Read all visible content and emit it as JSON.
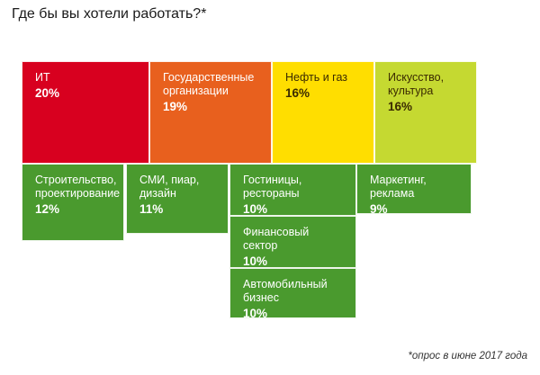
{
  "title": "Где бы вы хотели работать?*",
  "footnote": "*опрос в июне 2017 года",
  "chart_data": {
    "type": "treemap",
    "categories": [
      "ИТ",
      "Государственные организации",
      "Нефть и газ",
      "Искусство, культура",
      "Строительство, проектирование",
      "СМИ, пиар, дизайн",
      "Гостиницы, рестораны",
      "Маркетинг, реклама",
      "Финансовый сектор",
      "Автомобильный бизнес"
    ],
    "values": [
      20,
      19,
      16,
      16,
      12,
      11,
      10,
      9,
      10,
      10
    ],
    "tiles": [
      {
        "label": "ИТ",
        "value_text": "20%",
        "color": "#d8001f"
      },
      {
        "label": "Государственные\nорганизации",
        "value_text": "19%",
        "color": "#e8601e"
      },
      {
        "label": "Нефть и газ",
        "value_text": "16%",
        "color": "#ffde00"
      },
      {
        "label": "Искусство,\nкультура",
        "value_text": "16%",
        "color": "#c5d931"
      },
      {
        "label": "Строительство,\nпроектирование",
        "value_text": "12%",
        "color": "#4a9a2e"
      },
      {
        "label": "СМИ, пиар,\nдизайн",
        "value_text": "11%",
        "color": "#4a9a2e"
      },
      {
        "label": "Гостиницы,\nрестораны",
        "value_text": "10%",
        "color": "#4a9a2e"
      },
      {
        "label": "Маркетинг,\nреклама",
        "value_text": "9%",
        "color": "#4a9a2e"
      },
      {
        "label": "Финансовый\nсектор",
        "value_text": "10%",
        "color": "#4a9a2e"
      },
      {
        "label": "Автомобильный\nбизнес",
        "value_text": "10%",
        "color": "#4a9a2e"
      }
    ]
  }
}
